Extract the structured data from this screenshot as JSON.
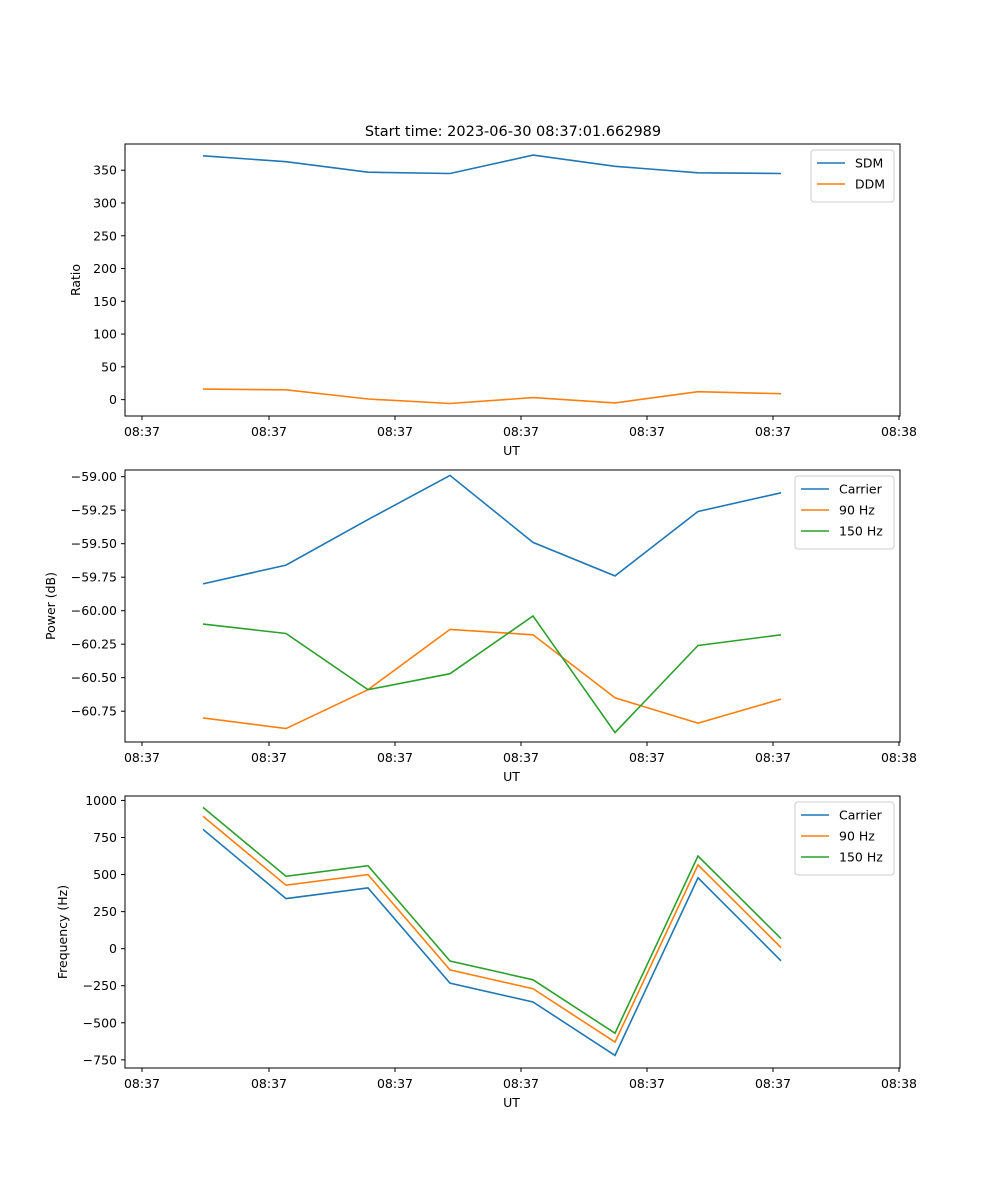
{
  "title": "Start time: 2023-06-30 08:37:01.662989",
  "colors": {
    "blue": "#1f77b4",
    "orange": "#ff7f0e",
    "green": "#2ca02c"
  },
  "chart_data": [
    {
      "type": "line",
      "xlabel": "UT",
      "ylabel": "Ratio",
      "x_tick_labels": [
        "08:37",
        "08:37",
        "08:37",
        "08:37",
        "08:37",
        "08:37",
        "08:38"
      ],
      "y_ticks": [
        0,
        50,
        100,
        150,
        200,
        250,
        300,
        350
      ],
      "y_tick_labels": [
        "0",
        "50",
        "100",
        "150",
        "200",
        "250",
        "300",
        "350"
      ],
      "ylim": [
        -25,
        390
      ],
      "legend": "top-right",
      "grid": false,
      "series": [
        {
          "name": "SDM",
          "color": "#1f77b4",
          "values": [
            372,
            363,
            347,
            345,
            373,
            356,
            346,
            345
          ]
        },
        {
          "name": "DDM",
          "color": "#ff7f0e",
          "values": [
            16,
            15,
            1,
            -6,
            3,
            -5,
            12,
            9
          ]
        }
      ]
    },
    {
      "type": "line",
      "xlabel": "UT",
      "ylabel": "Power (dB)",
      "x_tick_labels": [
        "08:37",
        "08:37",
        "08:37",
        "08:37",
        "08:37",
        "08:37",
        "08:38"
      ],
      "y_ticks": [
        -60.75,
        -60.5,
        -60.25,
        -60.0,
        -59.75,
        -59.5,
        -59.25,
        -59.0
      ],
      "y_tick_labels": [
        "−60.75",
        "−60.50",
        "−60.25",
        "−60.00",
        "−59.75",
        "−59.50",
        "−59.25",
        "−59.00"
      ],
      "ylim": [
        -60.98,
        -58.95
      ],
      "legend": "top-right",
      "grid": false,
      "series": [
        {
          "name": "Carrier",
          "color": "#1f77b4",
          "values": [
            -59.8,
            -59.66,
            -59.32,
            -58.99,
            -59.49,
            -59.74,
            -59.26,
            -59.12
          ]
        },
        {
          "name": "90 Hz",
          "color": "#ff7f0e",
          "values": [
            -60.8,
            -60.88,
            -60.59,
            -60.14,
            -60.18,
            -60.65,
            -60.84,
            -60.66
          ]
        },
        {
          "name": "150 Hz",
          "color": "#2ca02c",
          "values": [
            -60.1,
            -60.17,
            -60.59,
            -60.47,
            -60.04,
            -60.91,
            -60.26,
            -60.18
          ]
        }
      ]
    },
    {
      "type": "line",
      "xlabel": "UT",
      "ylabel": "Frequency (Hz)",
      "x_tick_labels": [
        "08:37",
        "08:37",
        "08:37",
        "08:37",
        "08:37",
        "08:37",
        "08:38"
      ],
      "y_ticks": [
        -750,
        -500,
        -250,
        0,
        250,
        500,
        750,
        1000
      ],
      "y_tick_labels": [
        "−750",
        "−500",
        "−250",
        "0",
        "250",
        "500",
        "750",
        "1000"
      ],
      "ylim": [
        -805,
        1030
      ],
      "legend": "top-right",
      "grid": false,
      "series": [
        {
          "name": "Carrier",
          "color": "#1f77b4",
          "values": [
            805,
            338,
            410,
            -233,
            -360,
            -720,
            478,
            -82
          ]
        },
        {
          "name": "90 Hz",
          "color": "#ff7f0e",
          "values": [
            893,
            428,
            500,
            -143,
            -270,
            -630,
            565,
            8
          ]
        },
        {
          "name": "150 Hz",
          "color": "#2ca02c",
          "values": [
            953,
            488,
            560,
            -83,
            -210,
            -570,
            625,
            68
          ]
        }
      ]
    }
  ]
}
